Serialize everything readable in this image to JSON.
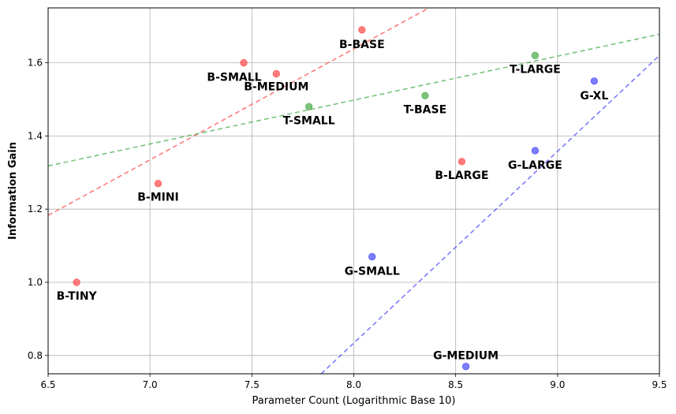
{
  "chart_data": {
    "type": "scatter",
    "title": "",
    "xlabel": "Parameter Count (Logarithmic Base 10)",
    "ylabel": "Information Gain",
    "xlim": [
      6.5,
      9.5
    ],
    "ylim": [
      0.75,
      1.75
    ],
    "x_ticks": [
      6.5,
      7.0,
      7.5,
      8.0,
      8.5,
      9.0,
      9.5
    ],
    "y_ticks": [
      0.8,
      1.0,
      1.2,
      1.4,
      1.6
    ],
    "grid": true,
    "legend": "none",
    "series": [
      {
        "color": "#ff4444",
        "points": [
          {
            "label": "B-TINY",
            "x": 6.64,
            "y": 1.0
          },
          {
            "label": "B-MINI",
            "x": 7.04,
            "y": 1.27
          },
          {
            "label": "B-SMALL",
            "x": 7.46,
            "y": 1.6
          },
          {
            "label": "B-MEDIUM",
            "x": 7.62,
            "y": 1.57
          },
          {
            "label": "B-BASE",
            "x": 8.04,
            "y": 1.69
          },
          {
            "label": "B-LARGE",
            "x": 8.53,
            "y": 1.33
          }
        ],
        "trend": [
          {
            "x": 6.5,
            "y": 1.183
          },
          {
            "x": 9.5,
            "y": 2.093
          }
        ]
      },
      {
        "color": "#44aa44",
        "points": [
          {
            "label": "T-SMALL",
            "x": 7.78,
            "y": 1.48
          },
          {
            "label": "T-BASE",
            "x": 8.35,
            "y": 1.51
          },
          {
            "label": "T-LARGE",
            "x": 8.89,
            "y": 1.62
          }
        ],
        "trend": [
          {
            "x": 6.5,
            "y": 1.318
          },
          {
            "x": 9.5,
            "y": 1.678
          }
        ]
      },
      {
        "color": "#4444ff",
        "points": [
          {
            "label": "G-SMALL",
            "x": 8.09,
            "y": 1.07
          },
          {
            "label": "G-MEDIUM",
            "x": 8.55,
            "y": 0.77
          },
          {
            "label": "G-LARGE",
            "x": 8.89,
            "y": 1.36
          },
          {
            "label": "G-XL",
            "x": 9.18,
            "y": 1.55
          }
        ],
        "trend": [
          {
            "x": 7.84,
            "y": 0.75
          },
          {
            "x": 9.5,
            "y": 1.62
          }
        ]
      }
    ]
  }
}
